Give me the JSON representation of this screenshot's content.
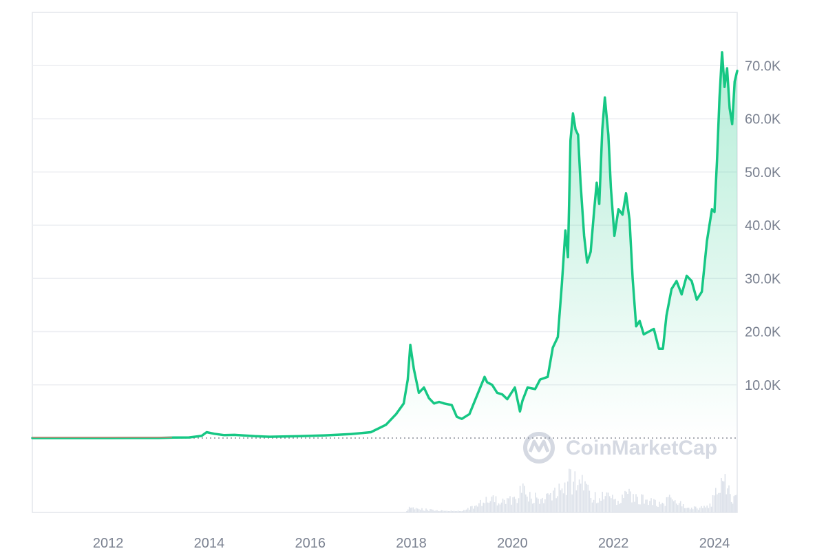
{
  "watermark": {
    "text": "CoinMarketCap"
  },
  "colors": {
    "line": "#16c784",
    "area_top": "#16c784",
    "grid": "#eceef2",
    "frame": "#e3e6eb",
    "baseline_dots": "#8a8f99",
    "volume": "#dde2ea",
    "axis_text": "#7a8190",
    "watermark": "#d5d9e2"
  },
  "chart_data": {
    "type": "area",
    "title": "",
    "xlabel": "",
    "ylabel": "",
    "x_ticks": [
      "2012",
      "2014",
      "2016",
      "2018",
      "2020",
      "2022",
      "2024"
    ],
    "y_ticks": [
      "10.0K",
      "20.0K",
      "30.0K",
      "40.0K",
      "50.0K",
      "60.0K",
      "70.0K"
    ],
    "ylim": [
      0,
      80000
    ],
    "xlim": [
      2010.5,
      2024.45
    ],
    "grid": true,
    "legend": "none",
    "y_axis_side": "right",
    "series": [
      {
        "x": [
          2010.5,
          2011.0,
          2011.5,
          2012.0,
          2012.5,
          2013.0,
          2013.3,
          2013.6,
          2013.85,
          2013.95,
          2014.1,
          2014.3,
          2014.5,
          2014.9,
          2015.2,
          2015.8,
          2016.3,
          2016.8,
          2017.2,
          2017.5,
          2017.7,
          2017.85,
          2017.93,
          2017.98,
          2018.05,
          2018.15,
          2018.25,
          2018.35,
          2018.45,
          2018.55,
          2018.65,
          2018.8,
          2018.9,
          2019.0,
          2019.15,
          2019.3,
          2019.45,
          2019.5,
          2019.6,
          2019.7,
          2019.8,
          2019.9,
          2020.05,
          2020.15,
          2020.2,
          2020.3,
          2020.45,
          2020.55,
          2020.7,
          2020.8,
          2020.9,
          2020.98,
          2021.05,
          2021.1,
          2021.15,
          2021.2,
          2021.25,
          2021.3,
          2021.35,
          2021.42,
          2021.48,
          2021.55,
          2021.62,
          2021.67,
          2021.72,
          2021.78,
          2021.83,
          2021.9,
          2021.95,
          2022.02,
          2022.1,
          2022.18,
          2022.25,
          2022.32,
          2022.38,
          2022.45,
          2022.52,
          2022.6,
          2022.7,
          2022.8,
          2022.9,
          2022.98,
          2023.05,
          2023.15,
          2023.25,
          2023.35,
          2023.45,
          2023.55,
          2023.65,
          2023.75,
          2023.85,
          2023.95,
          2024.0,
          2024.05,
          2024.1,
          2024.15,
          2024.2,
          2024.25,
          2024.3,
          2024.35,
          2024.4,
          2024.45
        ],
        "y": [
          0,
          0,
          5,
          5,
          8,
          13,
          100,
          120,
          400,
          1100,
          800,
          550,
          600,
          350,
          250,
          350,
          500,
          750,
          1100,
          2500,
          4500,
          6500,
          11000,
          17500,
          13000,
          8500,
          9500,
          7500,
          6500,
          6800,
          6500,
          6200,
          4000,
          3600,
          4500,
          8000,
          11500,
          10500,
          10000,
          8500,
          8200,
          7300,
          9500,
          5000,
          7000,
          9500,
          9200,
          11000,
          11500,
          17000,
          19000,
          29000,
          39000,
          34000,
          56000,
          61000,
          58000,
          57000,
          48000,
          38000,
          33000,
          35000,
          43000,
          48000,
          44000,
          58000,
          64000,
          57000,
          47000,
          38000,
          43000,
          42000,
          46000,
          41000,
          30000,
          21000,
          22000,
          19500,
          20000,
          20500,
          16800,
          16800,
          23000,
          28000,
          29500,
          27000,
          30500,
          29500,
          26000,
          27500,
          37000,
          43000,
          42500,
          52000,
          64000,
          72500,
          66000,
          69500,
          62000,
          59000,
          67000,
          69000
        ]
      }
    ],
    "volume_series": {
      "x": [
        2017.9,
        2018.0,
        2018.2,
        2018.5,
        2019.0,
        2019.3,
        2019.5,
        2019.8,
        2020.0,
        2020.2,
        2020.5,
        2020.8,
        2021.0,
        2021.2,
        2021.4,
        2021.6,
        2021.8,
        2022.0,
        2022.3,
        2022.6,
        2022.9,
        2023.1,
        2023.4,
        2023.7,
        2023.9,
        2024.1,
        2024.2,
        2024.3,
        2024.45
      ],
      "y": [
        0.05,
        0.15,
        0.08,
        0.04,
        0.03,
        0.2,
        0.35,
        0.25,
        0.3,
        0.55,
        0.3,
        0.4,
        0.7,
        0.8,
        0.65,
        0.35,
        0.4,
        0.3,
        0.45,
        0.3,
        0.2,
        0.35,
        0.15,
        0.1,
        0.2,
        0.6,
        0.85,
        0.4,
        0.3
      ]
    }
  }
}
